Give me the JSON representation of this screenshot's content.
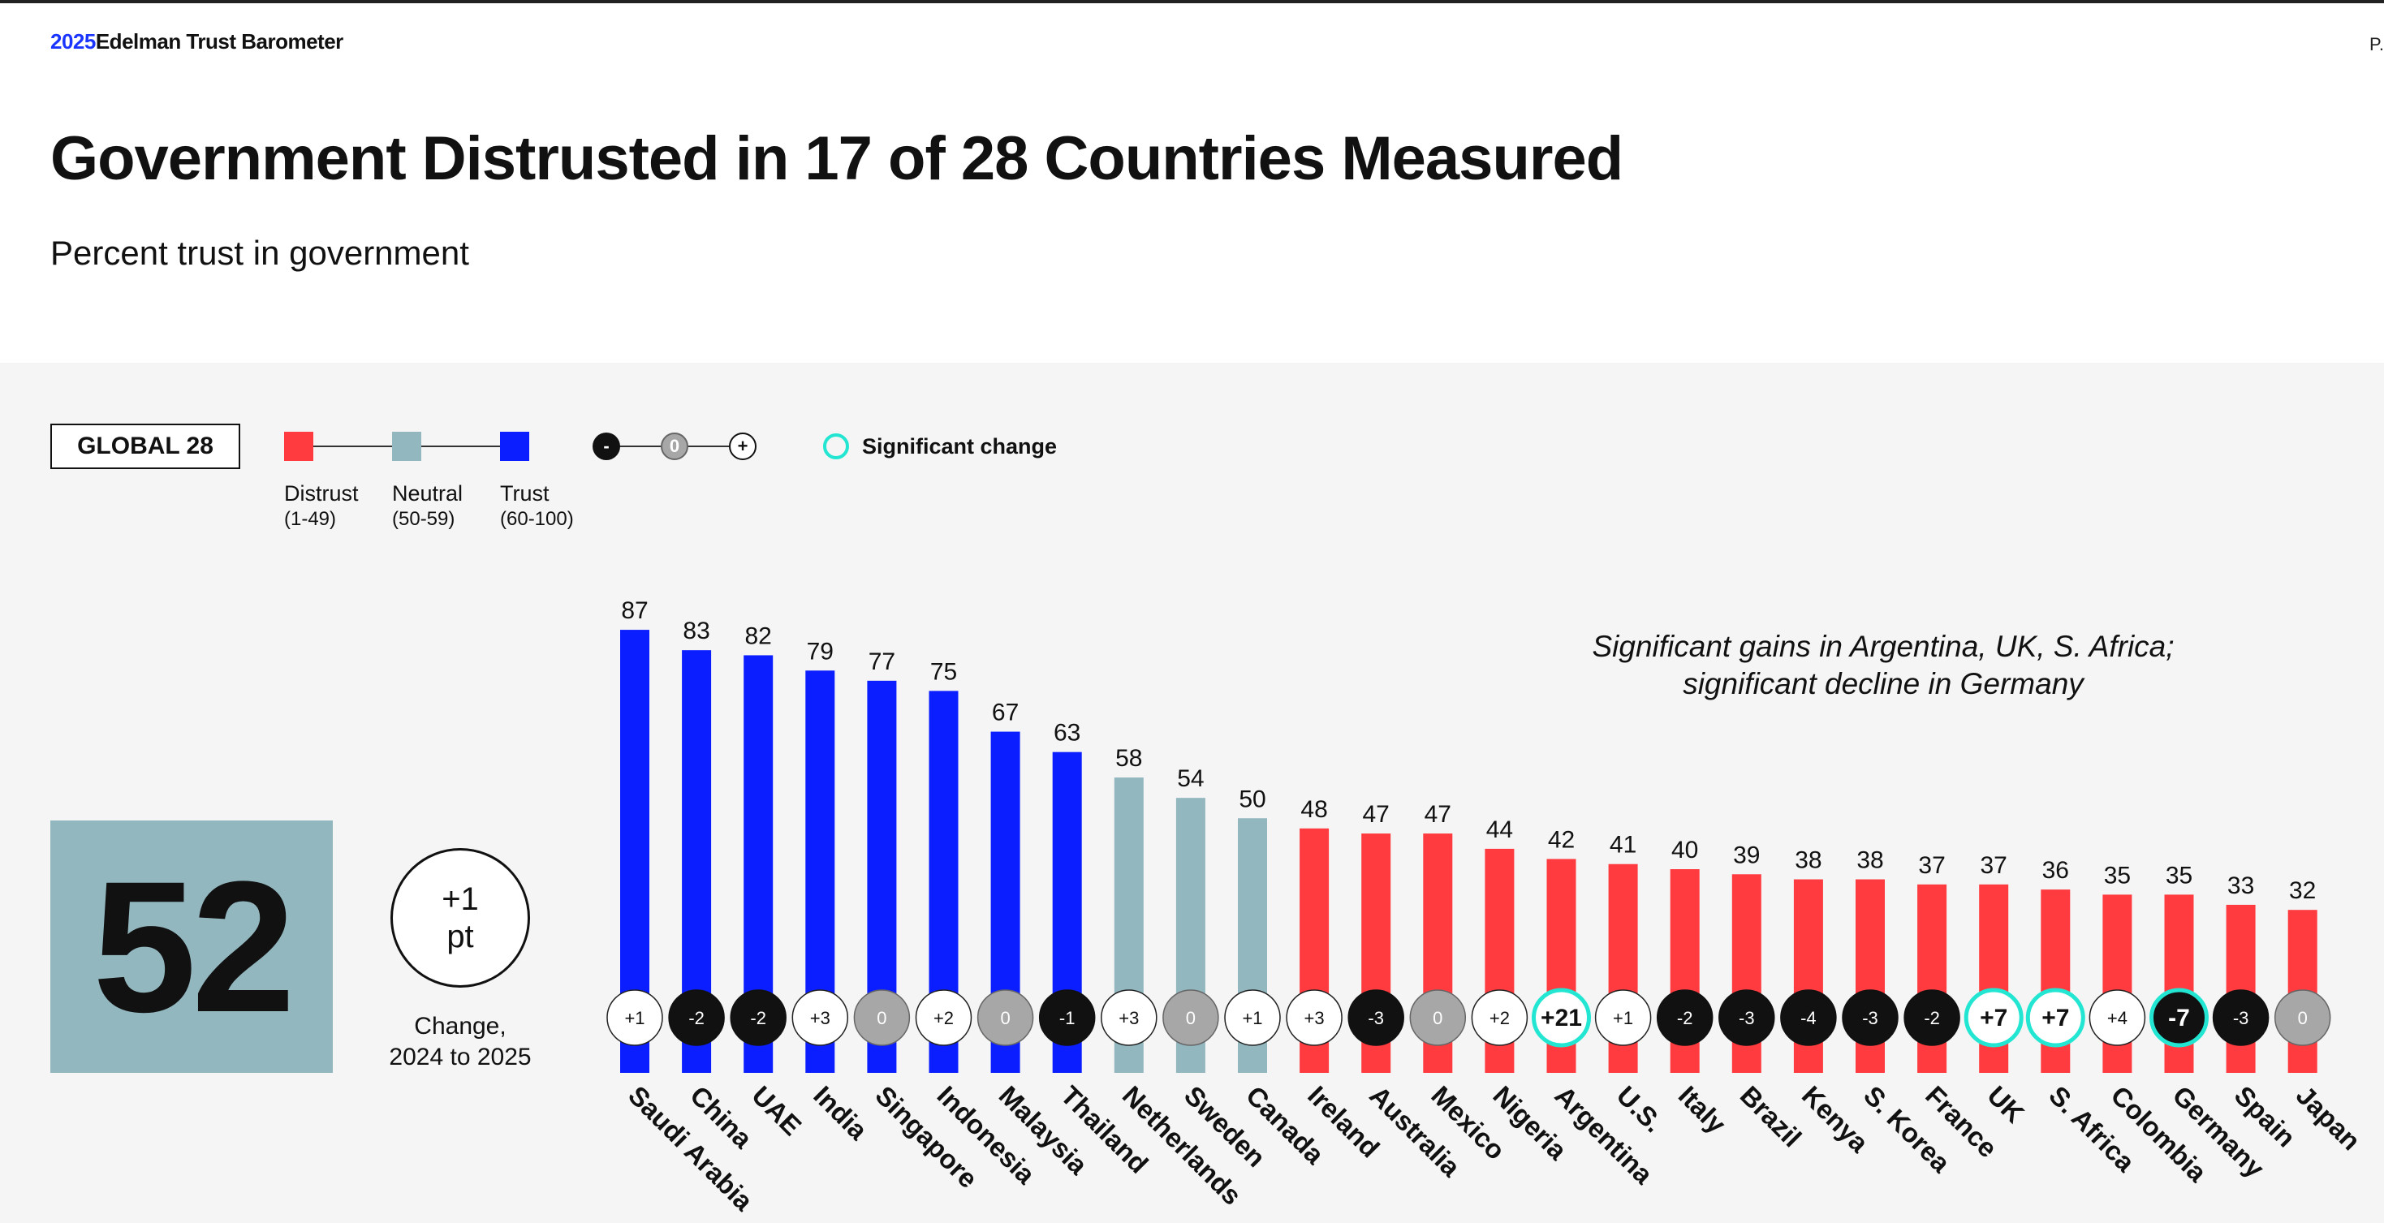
{
  "header": {
    "brand_year": "2025",
    "brand_name": "Edelman Trust Barometer",
    "page_label": "P.",
    "title": "Government Distrusted in 17 of 28 Countries Measured",
    "subtitle": "Percent trust in government"
  },
  "legend": {
    "global_label": "GLOBAL 28",
    "categories": [
      {
        "label": "Distrust",
        "range": "(1-49)",
        "color": "#ff3b3f"
      },
      {
        "label": "Neutral",
        "range": "(50-59)",
        "color": "#93b7bf"
      },
      {
        "label": "Trust",
        "range": "(60-100)",
        "color": "#0a1eff"
      }
    ],
    "change_symbols": [
      "-",
      "0",
      "+"
    ],
    "significant_label": "Significant change",
    "significant_color": "#22e6d2"
  },
  "global": {
    "value": "52",
    "change": "+1",
    "change_unit": "pt",
    "change_label_1": "Change,",
    "change_label_2": "2024 to 2025"
  },
  "note": {
    "line1": "Significant gains in Argentina, UK, S. Africa;",
    "line2": "significant decline in Germany"
  },
  "chart_data": {
    "type": "bar",
    "title": "Percent trust in government",
    "ylim": [
      0,
      100
    ],
    "categories": [
      "Saudi Arabia",
      "China",
      "UAE",
      "India",
      "Singapore",
      "Indonesia",
      "Malaysia",
      "Thailand",
      "Netherlands",
      "Sweden",
      "Canada",
      "Ireland",
      "Australia",
      "Mexico",
      "Nigeria",
      "Argentina",
      "U.S.",
      "Italy",
      "Brazil",
      "Kenya",
      "S. Korea",
      "France",
      "UK",
      "S. Africa",
      "Colombia",
      "Germany",
      "Spain",
      "Japan"
    ],
    "values": [
      87,
      83,
      82,
      79,
      77,
      75,
      67,
      63,
      58,
      54,
      50,
      48,
      47,
      47,
      44,
      42,
      41,
      40,
      39,
      38,
      38,
      37,
      37,
      36,
      35,
      35,
      33,
      32
    ],
    "changes": [
      1,
      -2,
      -2,
      3,
      0,
      2,
      0,
      -1,
      3,
      0,
      1,
      3,
      -3,
      0,
      2,
      21,
      1,
      -2,
      -3,
      -4,
      -3,
      -2,
      7,
      7,
      4,
      -7,
      -3,
      0
    ],
    "significant": [
      false,
      false,
      false,
      false,
      false,
      false,
      false,
      false,
      false,
      false,
      false,
      false,
      false,
      false,
      false,
      true,
      false,
      false,
      false,
      false,
      false,
      false,
      true,
      true,
      false,
      true,
      false,
      false
    ]
  }
}
